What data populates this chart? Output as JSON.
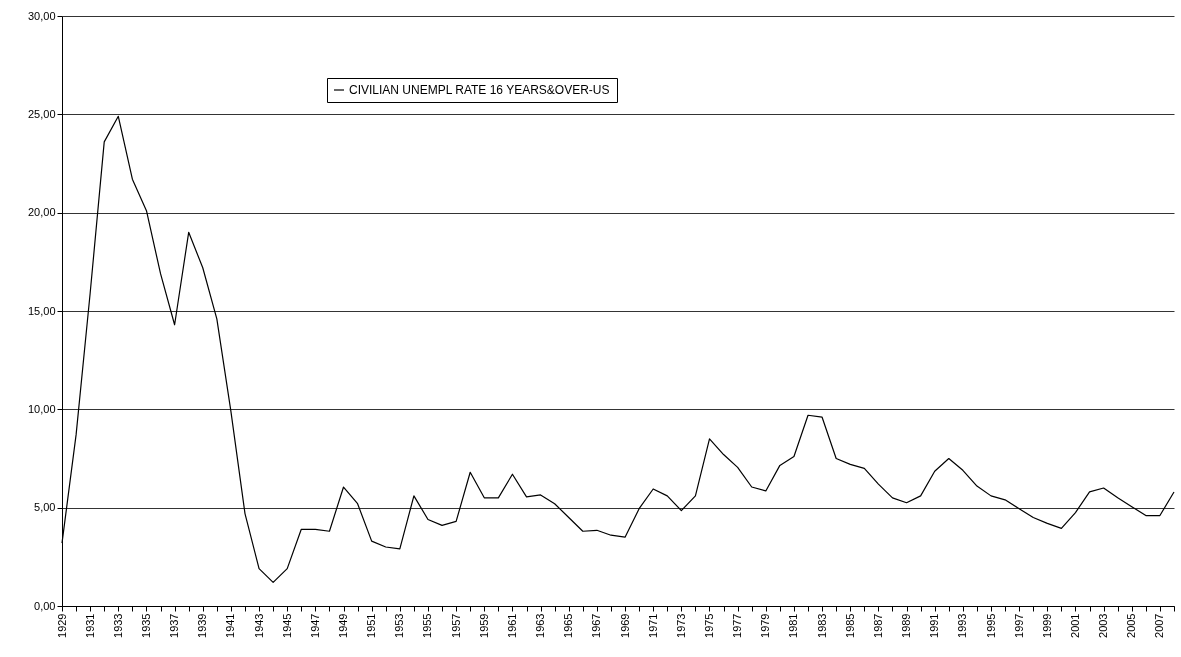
{
  "chart_data": {
    "type": "line",
    "categories": [
      "1929",
      null,
      "1931",
      null,
      "1933",
      null,
      "1935",
      null,
      "1937",
      null,
      "1939",
      null,
      "1941",
      null,
      "1943",
      null,
      "1945",
      null,
      "1947",
      null,
      "1949",
      null,
      "1951",
      null,
      "1953",
      null,
      "1955",
      null,
      "1957",
      null,
      "1959",
      null,
      "1961",
      null,
      "1963",
      null,
      "1965",
      null,
      "1967",
      null,
      "1969",
      null,
      "1971",
      null,
      "1973",
      null,
      "1975",
      null,
      "1977",
      null,
      "1979",
      null,
      "1981",
      null,
      "1983",
      null,
      "1985",
      null,
      "1987",
      null,
      "1989",
      null,
      "1991",
      null,
      "1993",
      null,
      "1995",
      null,
      "1997",
      null,
      "1999",
      null,
      "2001",
      null,
      "2003",
      null,
      "2005",
      null,
      "2007",
      null
    ],
    "series": [
      {
        "name": "CIVILIAN UNEMPL RATE 16 YEARS&OVER-US",
        "color": "#000000",
        "values": [
          3.2,
          8.7,
          15.9,
          23.6,
          24.9,
          21.7,
          20.1,
          16.9,
          14.3,
          19.0,
          17.2,
          14.6,
          9.9,
          4.7,
          1.9,
          1.2,
          1.9,
          3.9,
          3.9,
          3.8,
          6.05,
          5.2,
          3.3,
          3.0,
          2.9,
          5.6,
          4.4,
          4.1,
          4.3,
          6.8,
          5.5,
          5.5,
          6.7,
          5.55,
          5.65,
          5.2,
          4.5,
          3.8,
          3.85,
          3.6,
          3.5,
          4.95,
          5.95,
          5.6,
          4.85,
          5.6,
          8.5,
          7.7,
          7.05,
          6.05,
          5.85,
          7.15,
          7.6,
          9.7,
          9.6,
          7.5,
          7.2,
          7.0,
          6.2,
          5.5,
          5.25,
          5.6,
          6.85,
          7.5,
          6.9,
          6.1,
          5.6,
          5.4,
          4.95,
          4.5,
          4.2,
          3.95,
          4.75,
          5.8,
          6.0,
          5.5,
          5.05,
          4.6,
          4.6,
          5.8
        ]
      }
    ],
    "ylim": [
      0,
      30
    ],
    "yticks": [
      {
        "value": 0,
        "label": "0,00"
      },
      {
        "value": 5,
        "label": "5,00"
      },
      {
        "value": 10,
        "label": "10,00"
      },
      {
        "value": 15,
        "label": "15,00"
      },
      {
        "value": 20,
        "label": "20,00"
      },
      {
        "value": 25,
        "label": "25,00"
      },
      {
        "value": 30,
        "label": "30,00"
      }
    ],
    "grid": "y",
    "legend": "top",
    "marker": "none",
    "line_style": "solid"
  }
}
